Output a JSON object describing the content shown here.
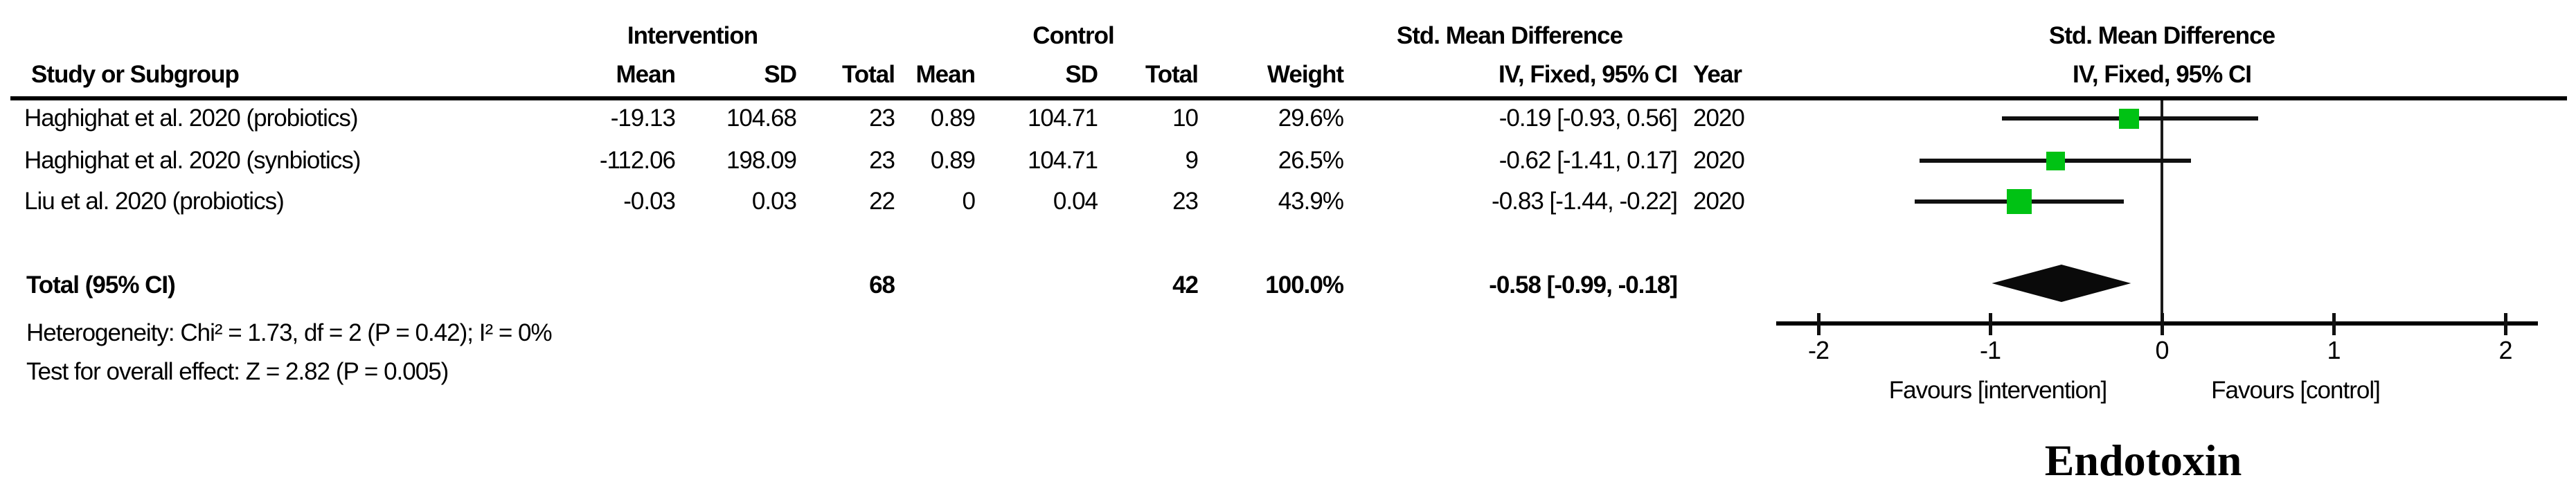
{
  "table": {
    "group": {
      "intervention": "Intervention",
      "control": "Control",
      "smd": "Std. Mean Difference"
    },
    "cols": {
      "study": "Study or Subgroup",
      "mean": "Mean",
      "sd": "SD",
      "total": "Total",
      "weight": "Weight",
      "ci": "IV, Fixed, 95% CI",
      "year": "Year"
    }
  },
  "chart_data": {
    "type": "forest",
    "effect_measure": "Std. Mean Difference",
    "method": "IV, Fixed, 95% CI",
    "studies": [
      {
        "study": "Haghighat et al. 2020 (probiotics)",
        "int_mean": -19.13,
        "int_sd": 104.68,
        "int_total": 23,
        "ctl_mean": 0.89,
        "ctl_sd": 104.71,
        "ctl_total": 10,
        "weight": "29.6%",
        "smd": -0.19,
        "ci_low": -0.93,
        "ci_high": 0.56,
        "ci_text": "-0.19 [-0.93, 0.56]",
        "year": "2020"
      },
      {
        "study": "Haghighat et al. 2020 (synbiotics)",
        "int_mean": -112.06,
        "int_sd": 198.09,
        "int_total": 23,
        "ctl_mean": 0.89,
        "ctl_sd": 104.71,
        "ctl_total": 9,
        "weight": "26.5%",
        "smd": -0.62,
        "ci_low": -1.41,
        "ci_high": 0.17,
        "ci_text": "-0.62 [-1.41, 0.17]",
        "year": "2020"
      },
      {
        "study": "Liu et al. 2020 (probiotics)",
        "int_mean": -0.03,
        "int_sd": 0.03,
        "int_total": 22,
        "ctl_mean": 0,
        "ctl_sd": 0.04,
        "ctl_total": 23,
        "weight": "43.9%",
        "smd": -0.83,
        "ci_low": -1.44,
        "ci_high": -0.22,
        "ci_text": "-0.83 [-1.44, -0.22]",
        "year": "2020"
      }
    ],
    "total": {
      "label": "Total (95% CI)",
      "int_total": 68,
      "ctl_total": 42,
      "weight": "100.0%",
      "smd": -0.58,
      "ci_low": -0.99,
      "ci_high": -0.18,
      "ci_text": "-0.58 [-0.99, -0.18]"
    },
    "heterogeneity": "Heterogeneity: Chi² = 1.73, df = 2 (P = 0.42); I² = 0%",
    "overall_effect": "Test for overall effect: Z = 2.82 (P = 0.005)",
    "axis": {
      "ticks": [
        -2,
        -1,
        0,
        1,
        2
      ],
      "min": -2,
      "max": 2
    },
    "xlabel_left": "Favours [intervention]",
    "xlabel_right": "Favours [control]",
    "caption": "Endotoxin",
    "marker_color": "#00c214",
    "line_color": "#111111"
  }
}
